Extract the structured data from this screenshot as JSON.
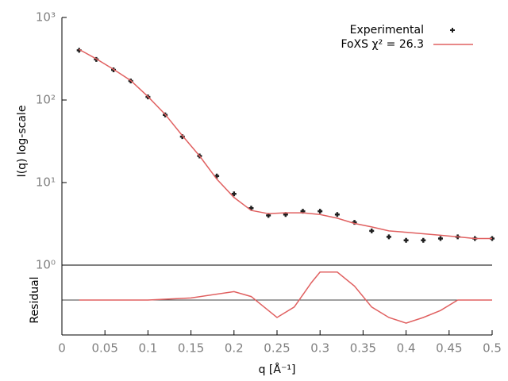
{
  "chart_data": [
    {
      "type": "line",
      "ylabel": "I(q) log-scale",
      "yscale": "log",
      "legend": "upper right",
      "x": [
        0.02,
        0.04,
        0.06,
        0.08,
        0.1,
        0.12,
        0.14,
        0.16,
        0.18,
        0.2,
        0.22,
        0.24,
        0.26,
        0.28,
        0.3,
        0.32,
        0.34,
        0.36,
        0.38,
        0.4,
        0.42,
        0.44,
        0.46,
        0.48,
        0.5
      ],
      "series": [
        {
          "name": "Experimental",
          "color": "#202020",
          "marker": "point",
          "values": [
            400,
            310,
            232,
            170,
            109,
            66,
            36,
            21,
            12,
            7.3,
            4.9,
            4.0,
            4.1,
            4.5,
            4.5,
            4.1,
            3.3,
            2.6,
            2.2,
            2.0,
            2.0,
            2.1,
            2.2,
            2.1,
            2.1
          ]
        },
        {
          "name": "FoXS χ² = 26.3",
          "color": "#e06060",
          "marker": "line",
          "values": [
            410,
            315,
            235,
            172,
            110,
            67,
            37,
            21,
            11,
            6.6,
            4.6,
            4.2,
            4.3,
            4.3,
            4.1,
            3.7,
            3.2,
            2.9,
            2.6,
            2.5,
            2.4,
            2.3,
            2.2,
            2.1,
            2.1
          ]
        }
      ],
      "xlim": [
        0,
        0.5
      ],
      "ylim": [
        1,
        1000
      ],
      "yticks": [
        {
          "value": 1,
          "label": "10⁰"
        },
        {
          "value": 10,
          "label": "10¹"
        },
        {
          "value": 100,
          "label": "10²"
        },
        {
          "value": 1000,
          "label": "10³"
        }
      ]
    },
    {
      "type": "line",
      "ylabel": "Residual",
      "xlabel": "q [Å⁻¹]",
      "x": [
        0.02,
        0.05,
        0.1,
        0.15,
        0.2,
        0.22,
        0.24,
        0.25,
        0.27,
        0.29,
        0.3,
        0.32,
        0.34,
        0.36,
        0.38,
        0.4,
        0.42,
        0.44,
        0.46,
        0.48,
        0.5
      ],
      "series": [
        {
          "color": "#e06060",
          "values": [
            0,
            0,
            0,
            0.3,
            1.2,
            0.5,
            -1.5,
            -2.5,
            -1,
            2.5,
            4,
            4,
            2,
            -1,
            -2.5,
            -3.3,
            -2.5,
            -1.5,
            0,
            0,
            0
          ]
        }
      ],
      "xlim": [
        0,
        0.5
      ],
      "ylim": [
        -5,
        5
      ],
      "xticks": [
        0,
        0.05,
        0.1,
        0.15,
        0.2,
        0.25,
        0.3,
        0.35,
        0.4,
        0.45,
        0.5
      ]
    }
  ]
}
